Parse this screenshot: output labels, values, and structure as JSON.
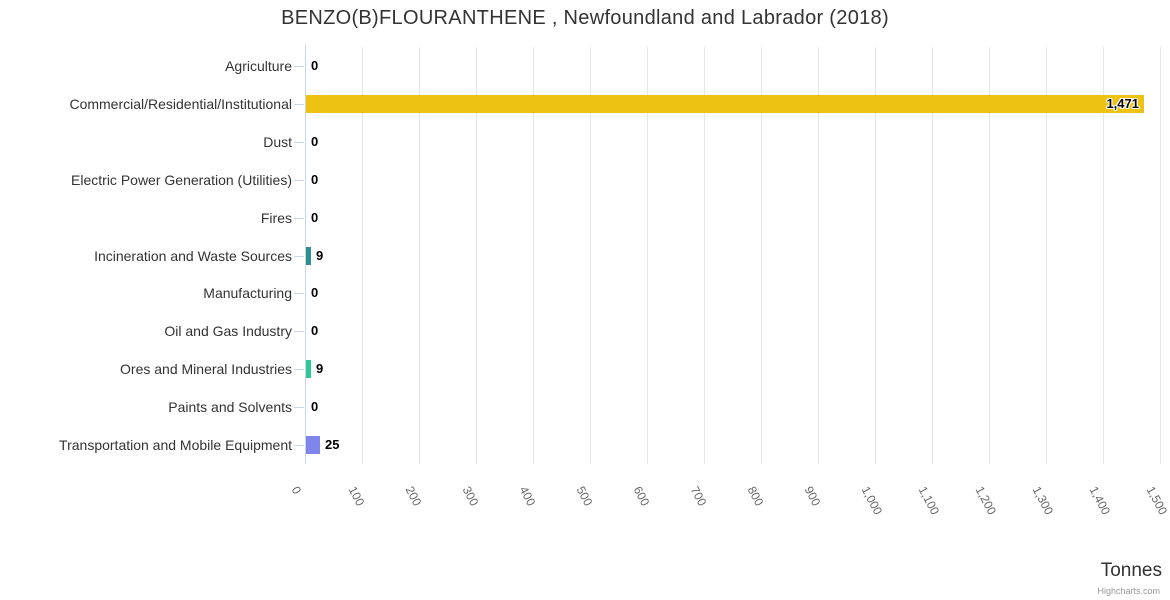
{
  "title": {
    "text": "BENZO(B)FLOURANTHENE , Newfoundland and Labrador (2018)"
  },
  "axis_title": "Tonnes",
  "credit": "Highcharts.com",
  "colors": {
    "background": "#ffffff",
    "grid": "#e6e6e6",
    "axis_line": "#ccd6eb",
    "category_tick": "#ccd6eb",
    "title_text": "#333333",
    "category_text": "#333333",
    "x_label_text": "#666666",
    "data_label_text": "#000000",
    "axis_title_text": "#333333",
    "credit_text": "#999999",
    "bar_gold": "#edc213",
    "bar_teal": "#2b908f",
    "bar_green": "#2ec795",
    "bar_purple": "#8085e9"
  },
  "chart_data": {
    "type": "bar",
    "orientation": "horizontal",
    "title": "BENZO(B)FLOURANTHENE , Newfoundland and Labrador (2018)",
    "xlabel": "Tonnes",
    "ylabel": "",
    "xlim": [
      0,
      1500
    ],
    "x_tick_step": 100,
    "x_tick_labels": [
      "0",
      "100",
      "200",
      "300",
      "400",
      "500",
      "600",
      "700",
      "800",
      "900",
      "1,000",
      "1,100",
      "1,200",
      "1,300",
      "1,400",
      "1,500"
    ],
    "grid": true,
    "legend": false,
    "categories": [
      "Agriculture",
      "Commercial/Residential/Institutional",
      "Dust",
      "Electric Power Generation (Utilities)",
      "Fires",
      "Incineration and Waste Sources",
      "Manufacturing",
      "Oil and Gas Industry",
      "Ores and Mineral Industries",
      "Paints and Solvents",
      "Transportation and Mobile Equipment"
    ],
    "values": [
      0,
      1471,
      0,
      0,
      0,
      9,
      0,
      0,
      9,
      0,
      25
    ],
    "value_labels": [
      "0",
      "1,471",
      "0",
      "0",
      "0",
      "9",
      "0",
      "0",
      "9",
      "0",
      "25"
    ],
    "bar_colors": [
      null,
      "#edc213",
      null,
      null,
      null,
      "#2b908f",
      null,
      null,
      "#2ec795",
      null,
      "#8085e9"
    ]
  }
}
